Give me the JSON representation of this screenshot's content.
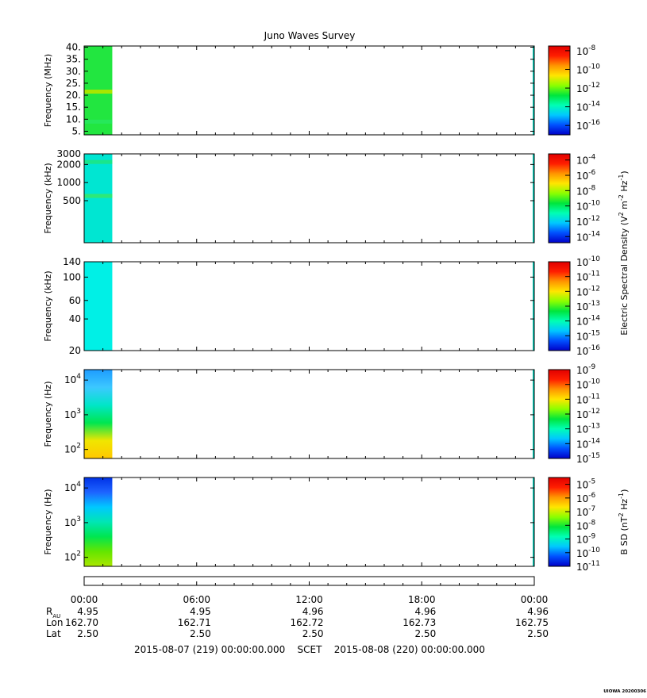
{
  "title": "Juno Waves Survey",
  "footer_mark": "UIOWA 20200306",
  "colors": {
    "colormap": [
      "#0000c8",
      "#0050ff",
      "#00c8ff",
      "#00ffb4",
      "#00e63c",
      "#8cff00",
      "#ffe600",
      "#ff9600",
      "#ff1e00",
      "#e10000"
    ]
  },
  "chart_data": [
    {
      "type": "heatmap",
      "name": "panel-1",
      "ylabel": "Frequency (MHz)",
      "yticks": [
        "40.",
        "35.",
        "30.",
        "25.",
        "20.",
        "15.",
        "10.",
        "5."
      ],
      "yscale": "linear",
      "ylim": [
        3.5,
        40.5
      ],
      "data_span_hours": [
        0,
        1.5
      ],
      "fill_color": "#22e640",
      "bands": [
        {
          "y": 21.5,
          "color": "#a8e600"
        },
        {
          "y": 9.0,
          "color": "#26e85a"
        }
      ],
      "cbar_ticks": [
        {
          "base": "10",
          "exp": "-8"
        },
        {
          "base": "10",
          "exp": "-10"
        },
        {
          "base": "10",
          "exp": "-12"
        },
        {
          "base": "10",
          "exp": "-14"
        },
        {
          "base": "10",
          "exp": "-16"
        }
      ],
      "cbar_range": [
        -17,
        -7.5
      ]
    },
    {
      "type": "heatmap",
      "name": "panel-2",
      "ylabel": "Frequency (kHz)",
      "yticks": [
        "3000",
        "2000",
        "1000",
        "500"
      ],
      "yscale": "log",
      "ylim": [
        100,
        3000
      ],
      "data_span_hours": [
        0,
        1.5
      ],
      "fill_color": "#00e6d2",
      "bands": [
        {
          "y": 2200,
          "color": "#19e68c"
        },
        {
          "y": 600,
          "color": "#2ee878"
        }
      ],
      "cbar_ticks": [
        {
          "base": "10",
          "exp": "-4"
        },
        {
          "base": "10",
          "exp": "-6"
        },
        {
          "base": "10",
          "exp": "-8"
        },
        {
          "base": "10",
          "exp": "-10"
        },
        {
          "base": "10",
          "exp": "-12"
        },
        {
          "base": "10",
          "exp": "-14"
        }
      ],
      "cbar_range": [
        -14.8,
        -3.2
      ]
    },
    {
      "type": "heatmap",
      "name": "panel-3",
      "ylabel": "Frequency (kHz)",
      "yticks": [
        "140",
        "100",
        "60",
        "40",
        "20"
      ],
      "yscale": "log",
      "ylim": [
        20,
        140
      ],
      "data_span_hours": [
        0,
        1.5
      ],
      "fill_color": "#00f0e6",
      "bands": [],
      "cbar_ticks": [
        {
          "base": "10",
          "exp": "-10"
        },
        {
          "base": "10",
          "exp": "-11"
        },
        {
          "base": "10",
          "exp": "-12"
        },
        {
          "base": "10",
          "exp": "-13"
        },
        {
          "base": "10",
          "exp": "-14"
        },
        {
          "base": "10",
          "exp": "-15"
        },
        {
          "base": "10",
          "exp": "-16"
        }
      ],
      "cbar_range": [
        -16,
        -10
      ]
    },
    {
      "type": "heatmap",
      "name": "panel-4",
      "ylabel": "Frequency (Hz)",
      "yticks": [
        {
          "base": "10",
          "exp": "4"
        },
        {
          "base": "10",
          "exp": "3"
        },
        {
          "base": "10",
          "exp": "2"
        }
      ],
      "yscale": "log",
      "ylim": [
        55,
        20000
      ],
      "data_span_hours": [
        0,
        1.5
      ],
      "gradient_top_to_bottom": [
        "#1e9cff",
        "#3cc8ff",
        "#00e6c8",
        "#00e650",
        "#f0e600",
        "#ffc800"
      ],
      "bands": [],
      "cbar_ticks": [
        {
          "base": "10",
          "exp": "-9"
        },
        {
          "base": "10",
          "exp": "-10"
        },
        {
          "base": "10",
          "exp": "-11"
        },
        {
          "base": "10",
          "exp": "-12"
        },
        {
          "base": "10",
          "exp": "-13"
        },
        {
          "base": "10",
          "exp": "-14"
        },
        {
          "base": "10",
          "exp": "-15"
        }
      ],
      "cbar_range": [
        -15,
        -9
      ]
    },
    {
      "type": "heatmap",
      "name": "panel-5",
      "ylabel": "Frequency (Hz)",
      "yticks": [
        {
          "base": "10",
          "exp": "4"
        },
        {
          "base": "10",
          "exp": "3"
        },
        {
          "base": "10",
          "exp": "2"
        }
      ],
      "yscale": "log",
      "ylim": [
        55,
        20000
      ],
      "data_span_hours": [
        0,
        1.5
      ],
      "gradient_top_to_bottom": [
        "#0032e6",
        "#1e64ff",
        "#00c8ff",
        "#00e6b4",
        "#00e650",
        "#64e600",
        "#aae600"
      ],
      "bands": [],
      "cbar_ticks": [
        {
          "base": "10",
          "exp": "-5"
        },
        {
          "base": "10",
          "exp": "-6"
        },
        {
          "base": "10",
          "exp": "-7"
        },
        {
          "base": "10",
          "exp": "-8"
        },
        {
          "base": "10",
          "exp": "-9"
        },
        {
          "base": "10",
          "exp": "-10"
        },
        {
          "base": "10",
          "exp": "-11"
        }
      ],
      "cbar_range": [
        -11,
        -4.5
      ]
    }
  ],
  "colorbar_labels": {
    "electric": {
      "text": "Electric Spectral Density (V",
      "sup1": "2",
      "mid": " m",
      "sup2": "-2",
      "mid2": " Hz",
      "sup3": "-1",
      "end": ")"
    },
    "magnetic": {
      "text": "B SD (nT",
      "sup1": "2",
      "mid": " Hz",
      "sup2": "-1",
      "end": ")"
    }
  },
  "time_axis": {
    "xlim_hours": [
      0,
      24
    ],
    "ticks": [
      "00:00",
      "06:00",
      "12:00",
      "18:00",
      "00:00"
    ],
    "ephemeris": [
      {
        "label": "R",
        "label_sub": "AU",
        "values": [
          "4.95",
          "4.95",
          "4.96",
          "4.96",
          "4.96"
        ]
      },
      {
        "label": "Lon",
        "label_sub": "",
        "values": [
          "162.70",
          "162.71",
          "162.72",
          "162.73",
          "162.75"
        ]
      },
      {
        "label": "Lat",
        "label_sub": "",
        "values": [
          "2.50",
          "2.50",
          "2.50",
          "2.50",
          "2.50"
        ]
      }
    ],
    "span_text": "2015-08-07 (219) 00:00:00.000    SCET    2015-08-08 (220) 00:00:00.000"
  }
}
